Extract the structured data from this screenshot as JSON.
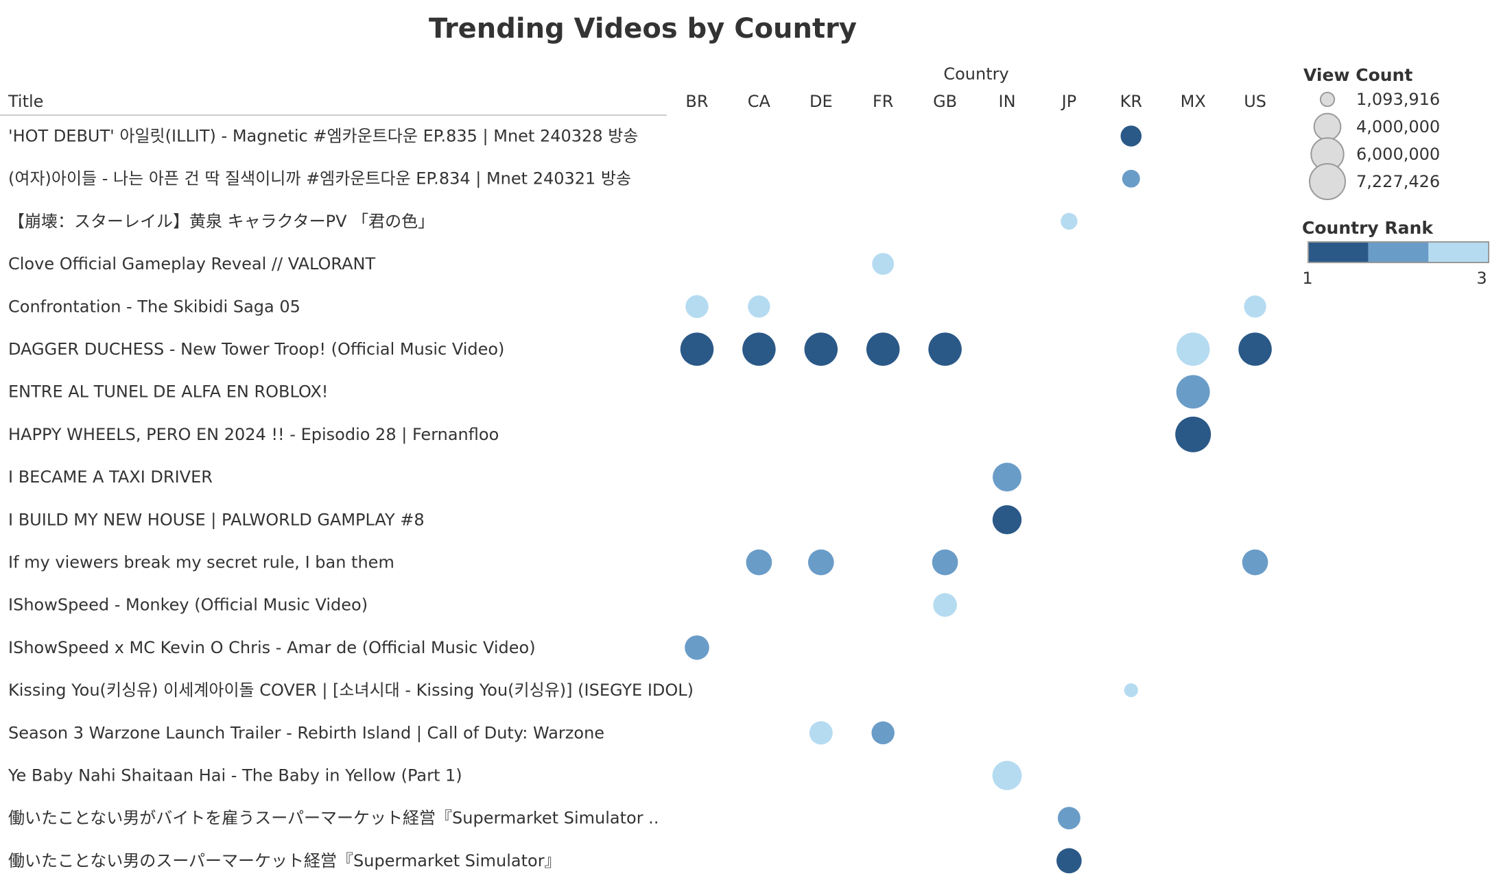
{
  "chart_data": {
    "type": "scatter",
    "title": "Trending Videos by Country",
    "column_header": "Country",
    "row_header": "Title",
    "columns": [
      "BR",
      "CA",
      "DE",
      "FR",
      "GB",
      "IN",
      "JP",
      "KR",
      "MX",
      "US"
    ],
    "rows": [
      "'HOT DEBUT' 아일릿(ILLIT) - Magnetic #엠카운트다운 EP.835 | Mnet 240328 방송",
      "(여자)아이들 - 나는 아픈 건 딱 질색이니까 #엠카운트다운 EP.834 | Mnet 240321 방송",
      "【崩壊：スターレイル】黄泉 キャラクターPV 「君の色」",
      "Clove Official Gameplay Reveal // VALORANT",
      "Confrontation - The Skibidi Saga 05",
      "DAGGER DUCHESS - New Tower Troop! (Official Music Video)",
      "ENTRE AL TUNEL DE ALFA EN ROBLOX!",
      "HAPPY WHEELS, PERO EN 2024 !! - Episodio 28 | Fernanfloo",
      "I BECAME A TAXI DRIVER",
      "I BUILD MY NEW HOUSE | PALWORLD GAMPLAY #8",
      "If my viewers break my secret rule, I ban them",
      "IShowSpeed - Monkey  (Official Music Video)",
      "IShowSpeed x MC Kevin O Chris - Amar de (Official Music Video)",
      "Kissing You(키싱유) 이세계아이돌 COVER | [소녀시대 - Kissing You(키싱유)] (ISEGYE IDOL)",
      "Season 3 Warzone Launch Trailer - Rebirth Island | Call of Duty: Warzone",
      "Ye Baby Nahi Shaitaan Hai - The Baby in Yellow (Part 1)",
      "働いたことない男がバイトを雇うスーパーマーケット経営『Supermarket Simulator ..",
      "働いたことない男のスーパーマーケット経営『Supermarket Simulator』"
    ],
    "points": [
      {
        "row": 0,
        "col": "KR",
        "views": 2500000,
        "rank": 1
      },
      {
        "row": 1,
        "col": "KR",
        "views": 1800000,
        "rank": 2
      },
      {
        "row": 2,
        "col": "JP",
        "views": 1600000,
        "rank": 3
      },
      {
        "row": 3,
        "col": "FR",
        "views": 2700000,
        "rank": 3
      },
      {
        "row": 4,
        "col": "BR",
        "views": 3000000,
        "rank": 3
      },
      {
        "row": 4,
        "col": "CA",
        "views": 2800000,
        "rank": 3
      },
      {
        "row": 4,
        "col": "US",
        "views": 2800000,
        "rank": 3
      },
      {
        "row": 5,
        "col": "BR",
        "views": 6300000,
        "rank": 1
      },
      {
        "row": 5,
        "col": "CA",
        "views": 6300000,
        "rank": 1
      },
      {
        "row": 5,
        "col": "DE",
        "views": 6300000,
        "rank": 1
      },
      {
        "row": 5,
        "col": "FR",
        "views": 6300000,
        "rank": 1
      },
      {
        "row": 5,
        "col": "GB",
        "views": 6300000,
        "rank": 1
      },
      {
        "row": 5,
        "col": "MX",
        "views": 6300000,
        "rank": 3
      },
      {
        "row": 5,
        "col": "US",
        "views": 6300000,
        "rank": 1
      },
      {
        "row": 6,
        "col": "MX",
        "views": 6400000,
        "rank": 2
      },
      {
        "row": 7,
        "col": "MX",
        "views": 7227426,
        "rank": 1
      },
      {
        "row": 8,
        "col": "IN",
        "views": 4700000,
        "rank": 2
      },
      {
        "row": 9,
        "col": "IN",
        "views": 4800000,
        "rank": 1
      },
      {
        "row": 10,
        "col": "CA",
        "views": 3800000,
        "rank": 2
      },
      {
        "row": 10,
        "col": "DE",
        "views": 3800000,
        "rank": 2
      },
      {
        "row": 10,
        "col": "GB",
        "views": 3800000,
        "rank": 2
      },
      {
        "row": 10,
        "col": "US",
        "views": 3800000,
        "rank": 2
      },
      {
        "row": 11,
        "col": "GB",
        "views": 3200000,
        "rank": 3
      },
      {
        "row": 12,
        "col": "BR",
        "views": 3400000,
        "rank": 2
      },
      {
        "row": 13,
        "col": "KR",
        "views": 1093916,
        "rank": 3
      },
      {
        "row": 14,
        "col": "DE",
        "views": 3100000,
        "rank": 3
      },
      {
        "row": 14,
        "col": "FR",
        "views": 3000000,
        "rank": 2
      },
      {
        "row": 15,
        "col": "IN",
        "views": 4900000,
        "rank": 3
      },
      {
        "row": 16,
        "col": "JP",
        "views": 2900000,
        "rank": 2
      },
      {
        "row": 17,
        "col": "JP",
        "views": 3600000,
        "rank": 1
      }
    ],
    "size_legend": {
      "title": "View Count",
      "entries": [
        {
          "label": "1,093,916",
          "value": 1093916
        },
        {
          "label": "4,000,000",
          "value": 4000000
        },
        {
          "label": "6,000,000",
          "value": 6000000
        },
        {
          "label": "7,227,426",
          "value": 7227426
        }
      ]
    },
    "color_legend": {
      "title": "Country Rank",
      "min_label": "1",
      "max_label": "3",
      "colors": {
        "1": "#2b5987",
        "2": "#6a9cc8",
        "3": "#b5dbf1"
      }
    },
    "legend_placement": "right"
  }
}
